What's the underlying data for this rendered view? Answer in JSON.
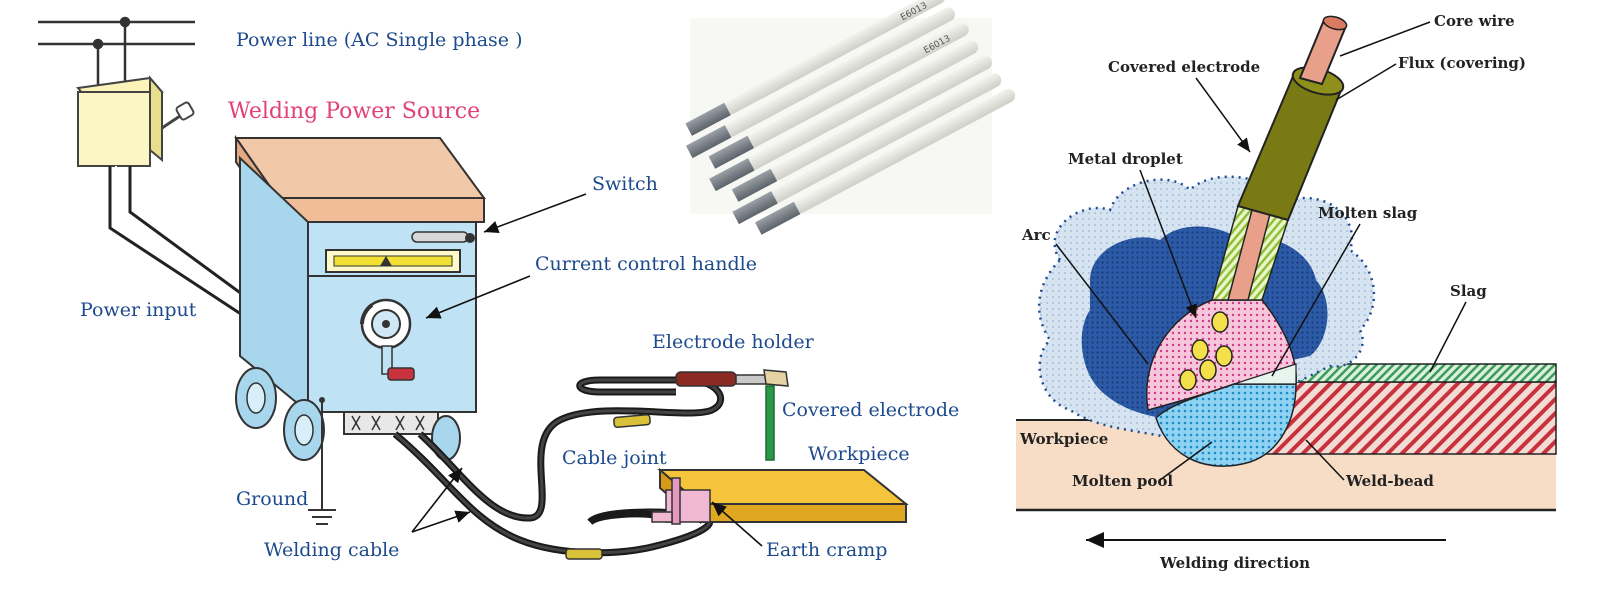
{
  "left_panel": {
    "power_line": "Power line (AC Single phase )",
    "welding_power_source": "Welding Power Source",
    "switch": "Switch",
    "current_control_handle": "Current control handle",
    "power_input": "Power input",
    "electrode_holder": "Electrode holder",
    "covered_electrode": "Covered electrode",
    "cable_joint": "Cable joint",
    "workpiece": "Workpiece",
    "ground": "Ground",
    "welding_cable": "Welding cable",
    "earth_cramp": "Earth cramp"
  },
  "right_panel": {
    "core_wire": "Core wire",
    "covered_electrode": "Covered electrode",
    "flux": "Flux (covering)",
    "metal_droplet": "Metal droplet",
    "molten_slag": "Molten slag",
    "arc": "Arc",
    "slag": "Slag",
    "workpiece": "Workpiece",
    "molten_pool": "Molten pool",
    "weld_bead": "Weld-bead",
    "welding_direction": "Welding direction"
  },
  "colors": {
    "label_blue": "#1c4a8c",
    "label_pink": "#e2407a",
    "machine_body": "#bfe3f4",
    "machine_top": "#f2c9a8",
    "workpiece_plate": "#f5c43a",
    "electrode_flux": "#7a7a14",
    "core_wire": "#e8a08a",
    "arc_blue": "#2f5fa8",
    "molten_pool": "#49b6e6",
    "weld_bead": "#cc3344",
    "slag_green": "#3c9a5a"
  }
}
